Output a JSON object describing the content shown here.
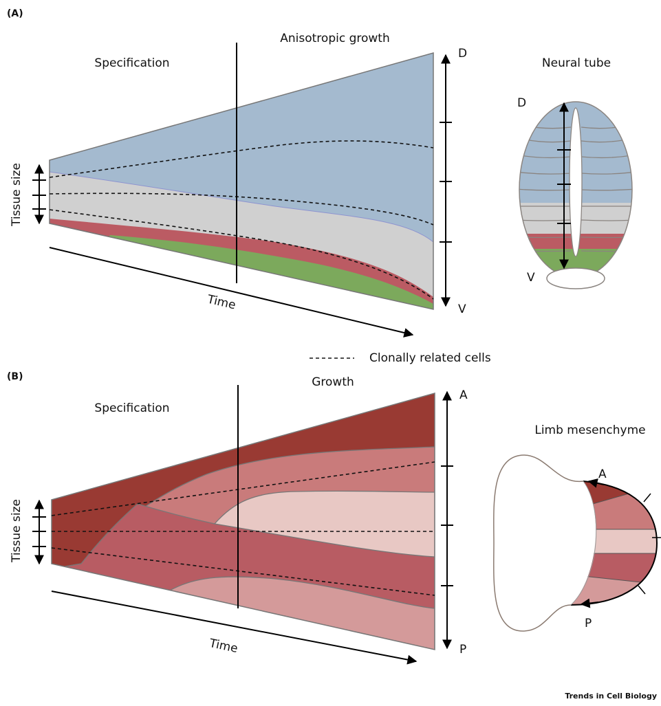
{
  "panels": [
    {
      "label": "(A)",
      "left_title": "Specification",
      "right_title": "Anisotropic growth",
      "axis_top": "D",
      "axis_bottom": "V",
      "y_label": "Tissue size",
      "x_label": "Time",
      "inset_title": "Neural tube",
      "inset_top": "D",
      "inset_bottom": "V"
    },
    {
      "label": "(B)",
      "left_title": "Specification",
      "right_title": "Growth",
      "axis_top": "A",
      "axis_bottom": "P",
      "y_label": "Tissue size",
      "x_label": "Time",
      "inset_title": "Limb mesenchyme",
      "inset_top": "A",
      "inset_bottom": "P"
    }
  ],
  "legend": {
    "label": "Clonally related cells"
  },
  "footer": "Trends in Cell Biology"
}
